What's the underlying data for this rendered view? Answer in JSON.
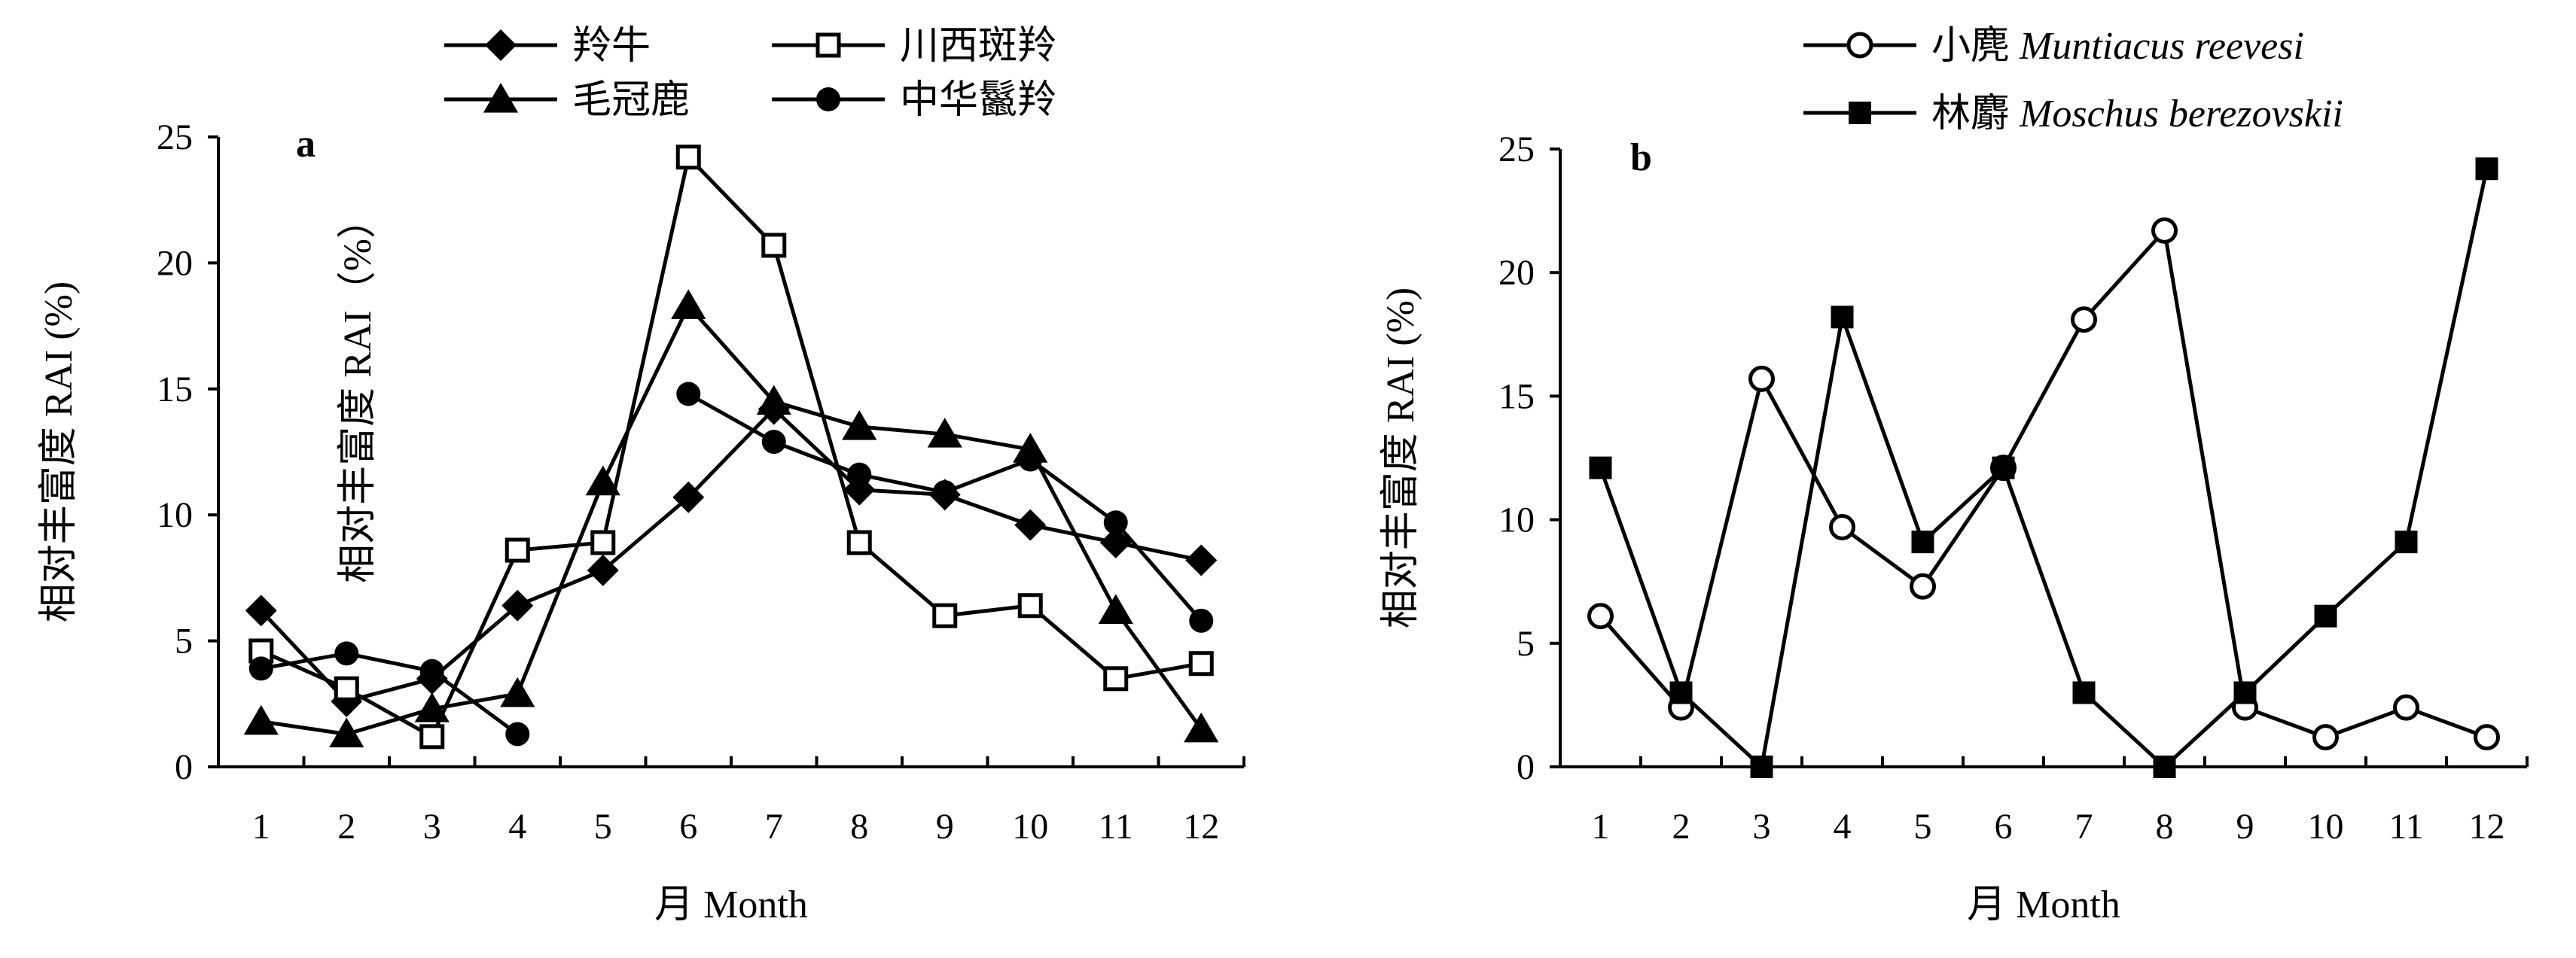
{
  "chart_data": [
    {
      "type": "line",
      "panel_label": "a",
      "xlabel": "月 Month",
      "ylabel": "相对丰富度 RAI (%)",
      "annotation": "相对丰富度 RAI（%）",
      "ylim": [
        0,
        25
      ],
      "yticks": [
        0,
        5,
        10,
        15,
        20,
        25
      ],
      "x": [
        1,
        2,
        3,
        4,
        5,
        6,
        7,
        8,
        9,
        10,
        11,
        12
      ],
      "legend_position": "top",
      "series": [
        {
          "name": "羚牛",
          "marker": "diamond-filled",
          "values": [
            6.2,
            2.6,
            3.5,
            6.4,
            7.8,
            10.7,
            14.2,
            11.0,
            10.8,
            9.6,
            8.9,
            8.2
          ]
        },
        {
          "name": "川西斑羚",
          "marker": "square-open",
          "values": [
            4.6,
            3.1,
            1.2,
            8.6,
            8.9,
            24.2,
            20.7,
            8.9,
            6.0,
            6.4,
            3.5,
            4.1
          ]
        },
        {
          "name": "毛冠鹿",
          "marker": "triangle-filled",
          "values": [
            1.8,
            1.3,
            2.3,
            2.9,
            11.3,
            18.3,
            14.5,
            13.5,
            13.2,
            12.6,
            6.2,
            1.5
          ]
        },
        {
          "name": "中华鬣羚",
          "marker": "circle-filled",
          "values": [
            3.9,
            4.5,
            3.8,
            1.3,
            null,
            14.8,
            12.9,
            11.6,
            10.9,
            12.2,
            9.7,
            5.8
          ]
        }
      ]
    },
    {
      "type": "line",
      "panel_label": "b",
      "xlabel": "月 Month",
      "ylabel": "相对丰富度 RAI (%)",
      "ylim": [
        0,
        25
      ],
      "yticks": [
        0,
        5,
        10,
        15,
        20,
        25
      ],
      "x": [
        1,
        2,
        3,
        4,
        5,
        6,
        7,
        8,
        9,
        10,
        11,
        12
      ],
      "legend_position": "top",
      "series": [
        {
          "name": "小麂",
          "latin": "Muntiacus reevesi",
          "marker": "circle-open",
          "values": [
            6.1,
            2.4,
            15.7,
            9.7,
            7.3,
            12.1,
            18.1,
            21.7,
            2.4,
            1.2,
            2.4,
            1.2
          ]
        },
        {
          "name": "林麝",
          "latin": "Moschus berezovskii",
          "marker": "square-filled",
          "values": [
            12.1,
            3.0,
            0.0,
            18.2,
            9.1,
            12.1,
            3.0,
            0.0,
            3.0,
            6.1,
            9.1,
            24.2
          ]
        }
      ]
    }
  ]
}
